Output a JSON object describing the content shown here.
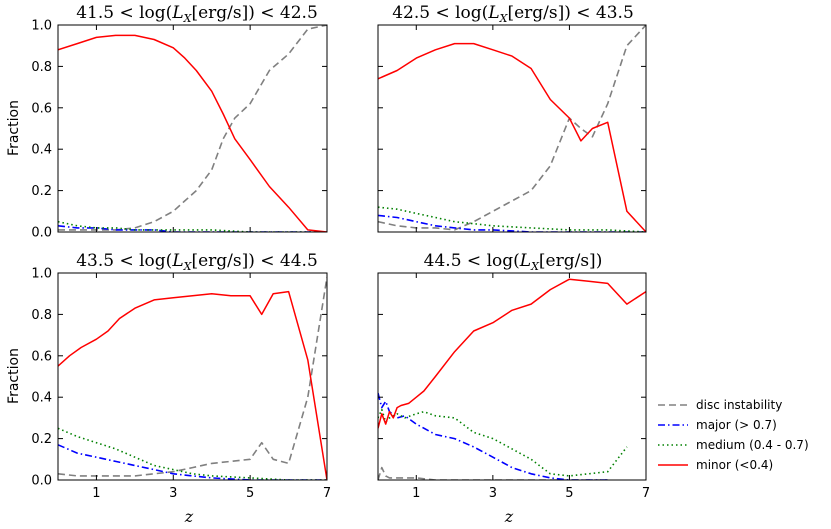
{
  "chart_data": {
    "type": "line",
    "ylabel": "Fraction",
    "xlabel": "z",
    "xlim": [
      0,
      7
    ],
    "ylim": [
      0,
      1
    ],
    "x_ticks": [
      1,
      3,
      5,
      7
    ],
    "x_tick_labels": [
      "1",
      "3",
      "5",
      "7"
    ],
    "y_ticks": [
      0.0,
      0.2,
      0.4,
      0.6,
      0.8,
      1.0
    ],
    "y_tick_labels": [
      "0.0",
      "0.2",
      "0.4",
      "0.6",
      "0.8",
      "1.0"
    ],
    "legend": [
      {
        "key": "disc",
        "label": "disc instability",
        "color": "#808080",
        "style": "dashed"
      },
      {
        "key": "major",
        "label": "major (> 0.7)",
        "color": "#0000ff",
        "style": "dashdot"
      },
      {
        "key": "medium",
        "label": "medium (0.4 - 0.7)",
        "color": "#008000",
        "style": "dotted"
      },
      {
        "key": "minor",
        "label": "minor (<0.4)",
        "color": "#ff0000",
        "style": "solid"
      }
    ],
    "panels": [
      {
        "title": "41.5 < log(L_X[erg/s]) < 42.5",
        "title_parts": {
          "pre": "41.5 < log(",
          "L": "L",
          "sub": "X",
          "post": "[erg/s]) < 42.5"
        },
        "series": {
          "minor": {
            "x": [
              0,
              0.5,
              1,
              1.5,
              2,
              2.5,
              3,
              3.3,
              3.6,
              4,
              4.3,
              4.6,
              5,
              5.5,
              6,
              6.5,
              7
            ],
            "y": [
              0.88,
              0.91,
              0.94,
              0.95,
              0.95,
              0.93,
              0.89,
              0.84,
              0.78,
              0.68,
              0.57,
              0.45,
              0.35,
              0.22,
              0.12,
              0.01,
              0.0
            ]
          },
          "disc": {
            "x": [
              0,
              0.5,
              1,
              1.5,
              2,
              2.5,
              3,
              3.3,
              3.6,
              4,
              4.3,
              4.6,
              5,
              5.5,
              6,
              6.5,
              7
            ],
            "y": [
              0.01,
              0.01,
              0.01,
              0.01,
              0.02,
              0.05,
              0.1,
              0.15,
              0.2,
              0.3,
              0.45,
              0.55,
              0.62,
              0.78,
              0.86,
              0.98,
              1.0
            ]
          },
          "major": {
            "x": [
              0,
              0.5,
              1,
              1.5,
              2,
              2.5,
              3,
              4,
              5,
              6,
              7
            ],
            "y": [
              0.03,
              0.02,
              0.02,
              0.01,
              0.01,
              0.01,
              0.0,
              0.0,
              0.0,
              0.0,
              0.0
            ]
          },
          "medium": {
            "x": [
              0,
              0.5,
              1,
              1.5,
              2,
              2.5,
              3,
              4,
              5,
              6,
              7
            ],
            "y": [
              0.05,
              0.03,
              0.02,
              0.02,
              0.01,
              0.01,
              0.01,
              0.01,
              0.0,
              0.0,
              0.0
            ]
          }
        }
      },
      {
        "title": "42.5 < log(L_X[erg/s]) < 43.5",
        "title_parts": {
          "pre": "42.5 < log(",
          "L": "L",
          "sub": "X",
          "post": "[erg/s]) < 43.5"
        },
        "series": {
          "minor": {
            "x": [
              0,
              0.5,
              1,
              1.5,
              2,
              2.5,
              3,
              3.5,
              4,
              4.5,
              5,
              5.3,
              5.6,
              6,
              6.5,
              7
            ],
            "y": [
              0.74,
              0.78,
              0.84,
              0.88,
              0.91,
              0.91,
              0.88,
              0.85,
              0.79,
              0.64,
              0.55,
              0.44,
              0.5,
              0.53,
              0.1,
              0.0
            ]
          },
          "disc": {
            "x": [
              0,
              0.5,
              1,
              1.5,
              2,
              2.5,
              3,
              3.5,
              4,
              4.5,
              5,
              5.3,
              5.6,
              6,
              6.5,
              7
            ],
            "y": [
              0.05,
              0.03,
              0.02,
              0.02,
              0.01,
              0.05,
              0.1,
              0.15,
              0.2,
              0.32,
              0.55,
              0.5,
              0.46,
              0.62,
              0.9,
              1.0
            ]
          },
          "major": {
            "x": [
              0,
              0.5,
              1,
              1.5,
              2,
              2.5,
              3,
              4,
              5,
              6,
              7
            ],
            "y": [
              0.08,
              0.07,
              0.05,
              0.03,
              0.02,
              0.01,
              0.01,
              0.0,
              0.0,
              0.0,
              0.0
            ]
          },
          "medium": {
            "x": [
              0,
              0.5,
              1,
              1.5,
              2,
              2.5,
              3,
              4,
              5,
              6,
              7
            ],
            "y": [
              0.12,
              0.11,
              0.09,
              0.07,
              0.05,
              0.04,
              0.03,
              0.02,
              0.01,
              0.01,
              0.0
            ]
          }
        }
      },
      {
        "title": "43.5 < log(L_X[erg/s]) < 44.5",
        "title_parts": {
          "pre": "43.5 < log(",
          "L": "L",
          "sub": "X",
          "post": "[erg/s]) < 44.5"
        },
        "series": {
          "minor": {
            "x": [
              0,
              0.3,
              0.6,
              1,
              1.3,
              1.6,
              2,
              2.5,
              3,
              3.5,
              4,
              4.5,
              5,
              5.3,
              5.6,
              6,
              6.5,
              7
            ],
            "y": [
              0.55,
              0.6,
              0.64,
              0.68,
              0.72,
              0.78,
              0.83,
              0.87,
              0.88,
              0.89,
              0.9,
              0.89,
              0.89,
              0.8,
              0.9,
              0.91,
              0.58,
              0.0
            ]
          },
          "disc": {
            "x": [
              0,
              0.5,
              1,
              1.5,
              2,
              2.5,
              3,
              3.5,
              4,
              4.5,
              5,
              5.3,
              5.6,
              6,
              6.5,
              7
            ],
            "y": [
              0.03,
              0.02,
              0.02,
              0.02,
              0.02,
              0.03,
              0.04,
              0.06,
              0.08,
              0.09,
              0.1,
              0.18,
              0.1,
              0.08,
              0.4,
              0.98
            ]
          },
          "major": {
            "x": [
              0,
              0.5,
              1,
              1.5,
              2,
              2.5,
              3,
              3.5,
              4,
              5,
              6,
              7
            ],
            "y": [
              0.17,
              0.13,
              0.11,
              0.09,
              0.07,
              0.05,
              0.03,
              0.02,
              0.01,
              0.0,
              0.0,
              0.0
            ]
          },
          "medium": {
            "x": [
              0,
              0.5,
              1,
              1.5,
              2,
              2.5,
              3,
              3.5,
              4,
              5,
              6,
              7
            ],
            "y": [
              0.25,
              0.21,
              0.18,
              0.15,
              0.11,
              0.07,
              0.05,
              0.03,
              0.02,
              0.01,
              0.0,
              0.0
            ]
          }
        }
      },
      {
        "title": "44.5 < log(L_X[erg/s])",
        "title_parts": {
          "pre": "44.5 < log(",
          "L": "L",
          "sub": "X",
          "post": "[erg/s])"
        },
        "series": {
          "minor": {
            "x": [
              0,
              0.1,
              0.2,
              0.3,
              0.4,
              0.5,
              0.6,
              0.8,
              1,
              1.2,
              1.5,
              2,
              2.5,
              3,
              3.5,
              4,
              4.5,
              5,
              5.5,
              6,
              6.5,
              7
            ],
            "y": [
              0.25,
              0.32,
              0.27,
              0.33,
              0.3,
              0.35,
              0.36,
              0.37,
              0.4,
              0.43,
              0.5,
              0.62,
              0.72,
              0.76,
              0.82,
              0.85,
              0.92,
              0.97,
              0.96,
              0.95,
              0.85,
              0.91
            ]
          },
          "disc": {
            "x": [
              0,
              0.1,
              0.2,
              0.3,
              0.5,
              1,
              1.5,
              2,
              3,
              4,
              5,
              6
            ],
            "y": [
              0.0,
              0.06,
              0.02,
              0.01,
              0.01,
              0.01,
              0.0,
              0.0,
              0.0,
              0.0,
              0.0,
              0.0
            ]
          },
          "major": {
            "x": [
              0,
              0.1,
              0.2,
              0.3,
              0.5,
              0.7,
              1,
              1.5,
              2,
              2.5,
              3,
              3.5,
              4,
              4.5,
              5,
              5.5,
              6
            ],
            "y": [
              0.42,
              0.35,
              0.38,
              0.33,
              0.3,
              0.31,
              0.27,
              0.22,
              0.2,
              0.16,
              0.11,
              0.06,
              0.03,
              0.01,
              0.0,
              0.0,
              0.0
            ]
          },
          "medium": {
            "x": [
              0,
              0.1,
              0.2,
              0.3,
              0.5,
              0.7,
              1,
              1.2,
              1.5,
              2,
              2.5,
              3,
              3.5,
              4,
              4.5,
              5,
              5.5,
              6,
              6.5
            ],
            "y": [
              0.3,
              0.34,
              0.28,
              0.3,
              0.32,
              0.3,
              0.32,
              0.33,
              0.31,
              0.3,
              0.23,
              0.2,
              0.15,
              0.1,
              0.03,
              0.02,
              0.03,
              0.04,
              0.16
            ]
          }
        }
      }
    ]
  }
}
